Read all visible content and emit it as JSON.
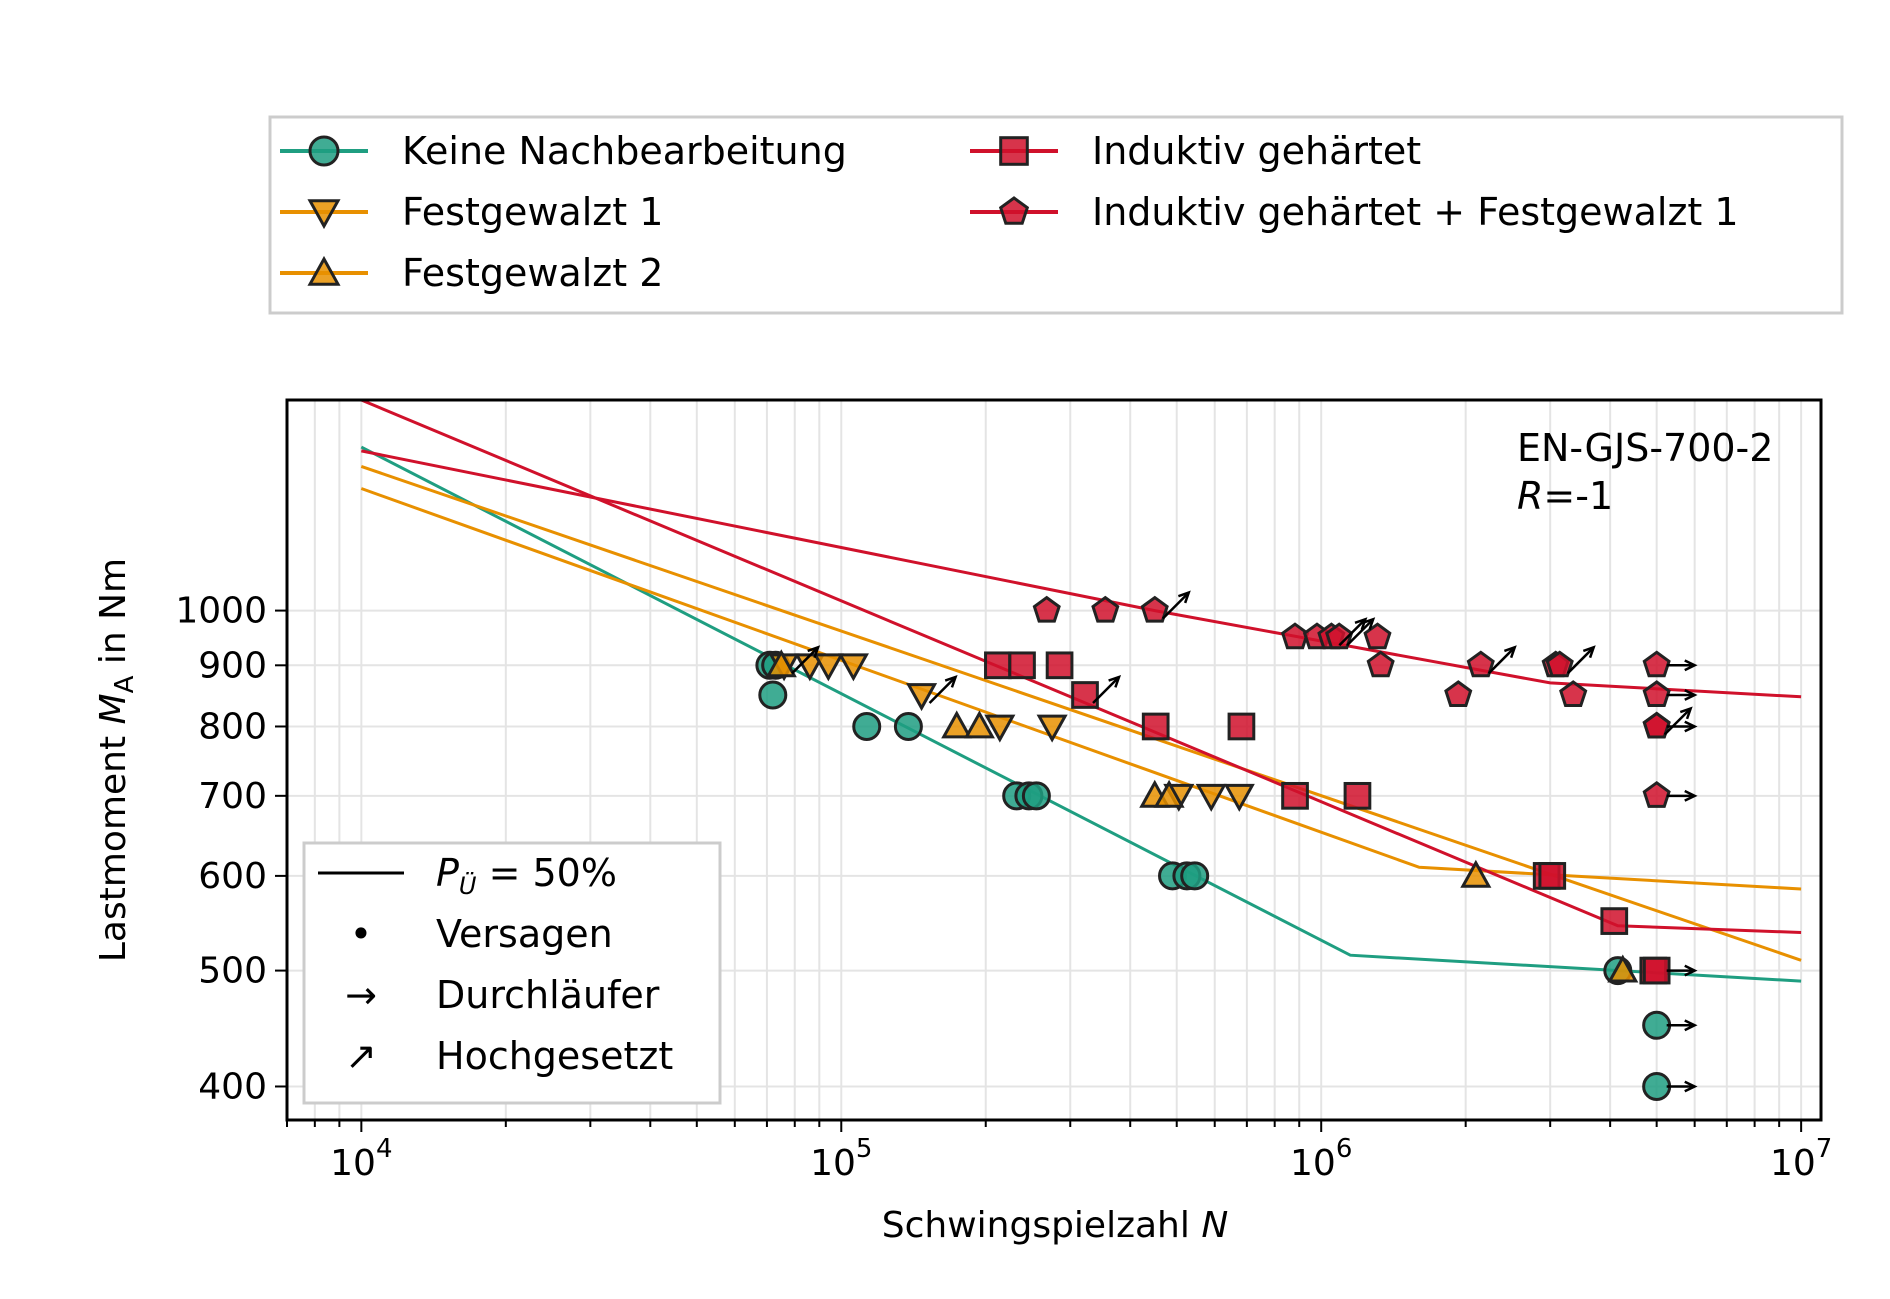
{
  "chart_data": {
    "type": "scatter",
    "xlabel": "Schwingspielzahl",
    "xlabel_var": "N",
    "ylabel": "Lastmoment",
    "ylabel_var": "M",
    "ylabel_sub": "A",
    "ylabel_unit": "in Nm",
    "x_scale": "log",
    "y_scale": "log",
    "xlim": [
      7000,
      11000000
    ],
    "ylim": [
      375,
      1500
    ],
    "grid": true,
    "x_ticks": [
      {
        "value": 10000,
        "base": "10",
        "exp": "4"
      },
      {
        "value": 100000,
        "base": "10",
        "exp": "5"
      },
      {
        "value": 1000000,
        "base": "10",
        "exp": "6"
      },
      {
        "value": 10000000,
        "base": "10",
        "exp": "7"
      }
    ],
    "y_ticks": [
      {
        "value": 400,
        "label": "400"
      },
      {
        "value": 500,
        "label": "500"
      },
      {
        "value": 600,
        "label": "600"
      },
      {
        "value": 700,
        "label": "700"
      },
      {
        "value": 800,
        "label": "800"
      },
      {
        "value": 900,
        "label": "900"
      },
      {
        "value": 1000,
        "label": "1000"
      }
    ],
    "annotation": {
      "material": "EN-GJS-700-2",
      "ratio_var": "R",
      "ratio_value": "=-1",
      "placement": "top-right"
    },
    "series": [
      {
        "name": "Keine Nachbearbeitung",
        "color": "#1f9e81",
        "marker": "circle",
        "curve": [
          [
            10000,
            1370
          ],
          [
            1150000,
            515
          ],
          [
            10000000,
            490
          ]
        ],
        "points": [
          {
            "x": 71000,
            "y": 900,
            "type": "failure"
          },
          {
            "x": 73000,
            "y": 900,
            "type": "failure"
          },
          {
            "x": 72000,
            "y": 850,
            "type": "failure"
          },
          {
            "x": 113000,
            "y": 800,
            "type": "failure"
          },
          {
            "x": 138000,
            "y": 800,
            "type": "failure"
          },
          {
            "x": 232000,
            "y": 700,
            "type": "failure"
          },
          {
            "x": 246000,
            "y": 700,
            "type": "failure"
          },
          {
            "x": 255000,
            "y": 700,
            "type": "failure"
          },
          {
            "x": 490000,
            "y": 600,
            "type": "failure"
          },
          {
            "x": 525000,
            "y": 600,
            "type": "failure"
          },
          {
            "x": 545000,
            "y": 600,
            "type": "failure"
          },
          {
            "x": 4150000,
            "y": 500,
            "type": "failure"
          },
          {
            "x": 5000000,
            "y": 450,
            "type": "runout"
          },
          {
            "x": 5000000,
            "y": 400,
            "type": "runout"
          }
        ]
      },
      {
        "name": "Festgewalzt 1",
        "color": "#e89000",
        "marker": "triangle-down",
        "curve": [
          [
            10000,
            1320
          ],
          [
            10000000,
            510
          ]
        ],
        "points": [
          {
            "x": 76000,
            "y": 900,
            "type": "raised"
          },
          {
            "x": 86000,
            "y": 900,
            "type": "failure"
          },
          {
            "x": 94000,
            "y": 900,
            "type": "failure"
          },
          {
            "x": 106000,
            "y": 900,
            "type": "failure"
          },
          {
            "x": 147000,
            "y": 850,
            "type": "raised"
          },
          {
            "x": 214000,
            "y": 800,
            "type": "failure"
          },
          {
            "x": 275000,
            "y": 800,
            "type": "failure"
          },
          {
            "x": 505000,
            "y": 700,
            "type": "failure"
          },
          {
            "x": 590000,
            "y": 700,
            "type": "failure"
          },
          {
            "x": 675000,
            "y": 700,
            "type": "failure"
          }
        ]
      },
      {
        "name": "Festgewalzt 2",
        "color": "#e89000",
        "marker": "triangle-up",
        "curve": [
          [
            10000,
            1265
          ],
          [
            1600000,
            610
          ],
          [
            10000000,
            585
          ]
        ],
        "points": [
          {
            "x": 75000,
            "y": 900,
            "type": "failure"
          },
          {
            "x": 174000,
            "y": 800,
            "type": "failure"
          },
          {
            "x": 194000,
            "y": 800,
            "type": "failure"
          },
          {
            "x": 450000,
            "y": 700,
            "type": "failure"
          },
          {
            "x": 482000,
            "y": 700,
            "type": "failure"
          },
          {
            "x": 2100000,
            "y": 600,
            "type": "failure"
          },
          {
            "x": 4250000,
            "y": 500,
            "type": "failure"
          }
        ]
      },
      {
        "name": "Induktiv gehärtet",
        "color": "#d0112b",
        "marker": "square",
        "curve": [
          [
            10000,
            1500
          ],
          [
            4150000,
            545
          ],
          [
            10000000,
            538
          ]
        ],
        "points": [
          {
            "x": 212000,
            "y": 900,
            "type": "failure"
          },
          {
            "x": 238000,
            "y": 900,
            "type": "failure"
          },
          {
            "x": 285000,
            "y": 900,
            "type": "failure"
          },
          {
            "x": 322000,
            "y": 850,
            "type": "raised"
          },
          {
            "x": 452000,
            "y": 800,
            "type": "failure"
          },
          {
            "x": 682000,
            "y": 800,
            "type": "failure"
          },
          {
            "x": 882000,
            "y": 700,
            "type": "failure"
          },
          {
            "x": 1190000,
            "y": 700,
            "type": "failure"
          },
          {
            "x": 2950000,
            "y": 600,
            "type": "failure"
          },
          {
            "x": 3030000,
            "y": 600,
            "type": "failure"
          },
          {
            "x": 4080000,
            "y": 550,
            "type": "failure"
          },
          {
            "x": 4920000,
            "y": 500,
            "type": "failure"
          },
          {
            "x": 5000000,
            "y": 500,
            "type": "runout"
          }
        ]
      },
      {
        "name": "Induktiv gehärtet + Festgewalzt 1",
        "color": "#d0112b",
        "marker": "pentagon",
        "curve": [
          [
            10000,
            1360
          ],
          [
            450000,
            1000
          ],
          [
            3000000,
            870
          ],
          [
            10000000,
            847
          ]
        ],
        "points": [
          {
            "x": 268000,
            "y": 1000,
            "type": "failure"
          },
          {
            "x": 355000,
            "y": 1000,
            "type": "failure"
          },
          {
            "x": 450000,
            "y": 1000,
            "type": "raised"
          },
          {
            "x": 882000,
            "y": 950,
            "type": "failure"
          },
          {
            "x": 980000,
            "y": 950,
            "type": "failure"
          },
          {
            "x": 1050000,
            "y": 950,
            "type": "raised"
          },
          {
            "x": 1090000,
            "y": 950,
            "type": "raised"
          },
          {
            "x": 1310000,
            "y": 950,
            "type": "failure"
          },
          {
            "x": 1330000,
            "y": 900,
            "type": "failure"
          },
          {
            "x": 1930000,
            "y": 850,
            "type": "failure"
          },
          {
            "x": 2150000,
            "y": 900,
            "type": "raised"
          },
          {
            "x": 3080000,
            "y": 900,
            "type": "failure"
          },
          {
            "x": 3140000,
            "y": 900,
            "type": "raised"
          },
          {
            "x": 3350000,
            "y": 850,
            "type": "failure"
          },
          {
            "x": 5000000,
            "y": 900,
            "type": "runout"
          },
          {
            "x": 5000000,
            "y": 850,
            "type": "runout"
          },
          {
            "x": 5000000,
            "y": 800,
            "type": "runout"
          },
          {
            "x": 5000000,
            "y": 800,
            "type": "raised"
          },
          {
            "x": 5000000,
            "y": 700,
            "type": "runout"
          }
        ]
      }
    ],
    "legend": {
      "placement": "top",
      "items": [
        {
          "series": 0,
          "label": "Keine Nachbearbeitung"
        },
        {
          "series": 1,
          "label": "Festgewalzt 1"
        },
        {
          "series": 2,
          "label": "Festgewalzt 2"
        },
        {
          "series": 3,
          "label": "Induktiv gehärtet"
        },
        {
          "series": 4,
          "label": "Induktiv gehärtet + Festgewalzt 1"
        }
      ]
    },
    "key_legend": {
      "placement": "lower-left",
      "items": [
        {
          "symbol": "line",
          "label_var": "P",
          "label_sub": "Ü",
          "label_rest": " = 50%"
        },
        {
          "symbol": "•",
          "label": "Versagen"
        },
        {
          "symbol": "→",
          "label": "Durchläufer"
        },
        {
          "symbol": "↗",
          "label": "Hochgesetzt"
        }
      ]
    }
  }
}
